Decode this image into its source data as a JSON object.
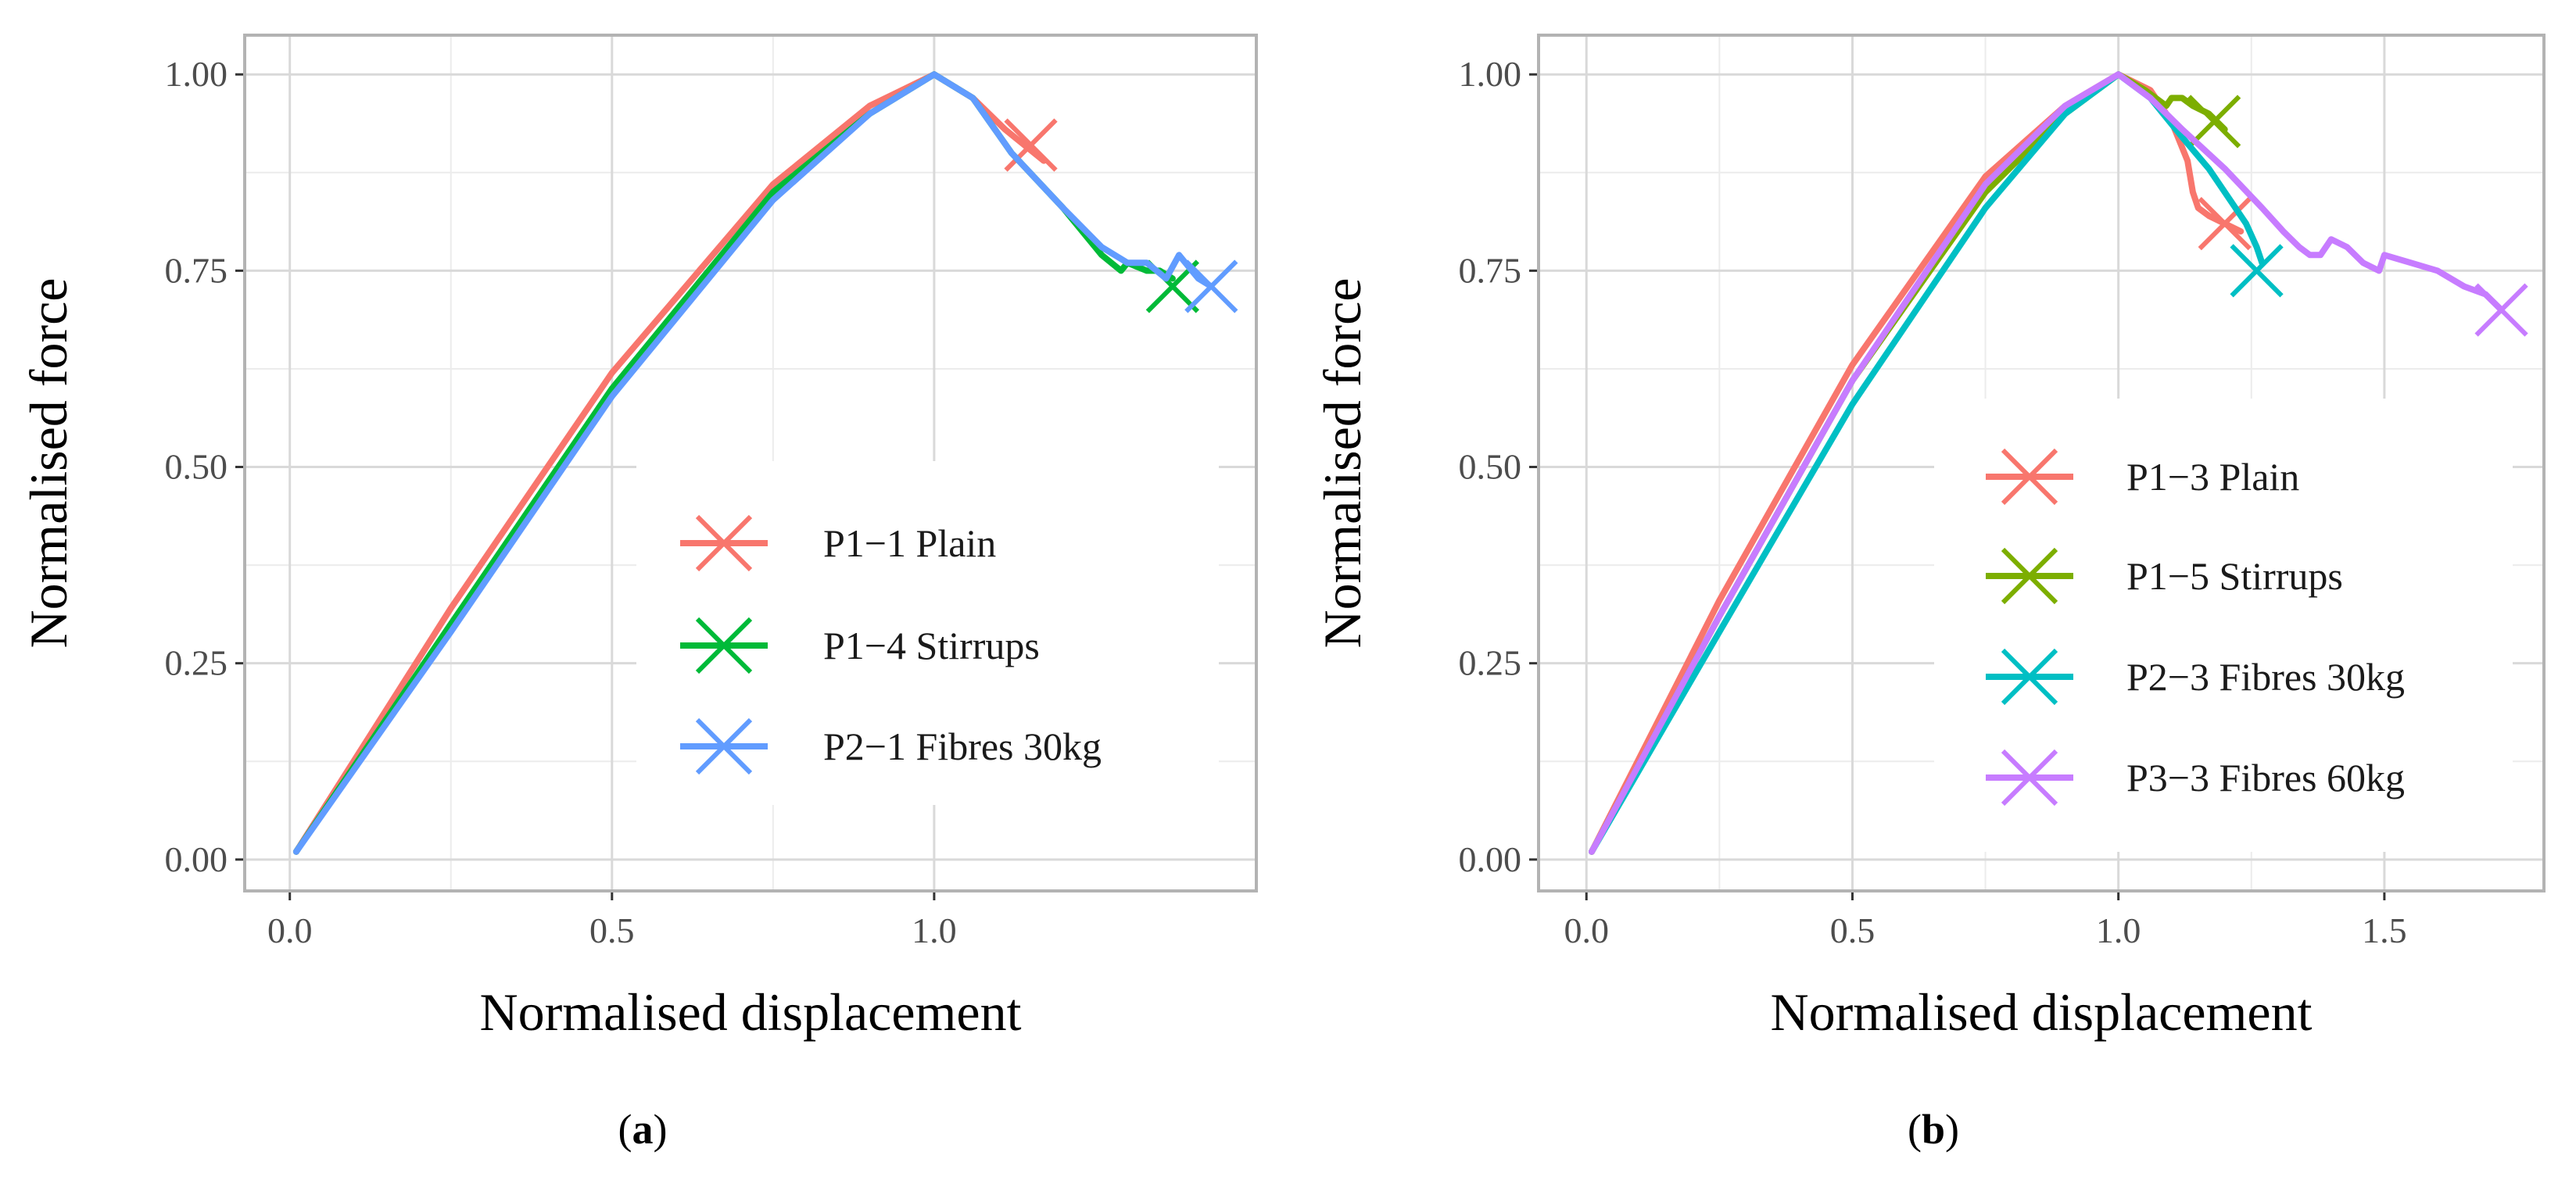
{
  "chart_data": [
    {
      "type": "line",
      "panel": "a",
      "caption": "(a)",
      "xlabel": "Normalised displacement",
      "ylabel": "Normalised force",
      "xlim": [
        -0.07,
        1.5
      ],
      "ylim": [
        -0.04,
        1.05
      ],
      "xticks": [
        0.0,
        0.5,
        1.0
      ],
      "xtick_labels": [
        "0.0",
        "0.5",
        "1.0"
      ],
      "yticks": [
        0.0,
        0.25,
        0.5,
        0.75,
        1.0
      ],
      "ytick_labels": [
        "0.00",
        "0.25",
        "0.50",
        "0.75",
        "1.00"
      ],
      "grid": true,
      "legend_position": "bottom-right",
      "series": [
        {
          "name": "P1−1 Plain",
          "color": "#F8766D",
          "x": [
            0.01,
            0.25,
            0.5,
            0.75,
            0.9,
            1.0,
            1.06,
            1.11,
            1.17
          ],
          "y": [
            0.01,
            0.32,
            0.62,
            0.86,
            0.96,
            1.0,
            0.97,
            0.93,
            0.89
          ],
          "end_marker": [
            1.15,
            0.91
          ]
        },
        {
          "name": "P1−4 Stirrups",
          "color": "#00BA38",
          "x": [
            0.01,
            0.25,
            0.5,
            0.75,
            0.9,
            1.0,
            1.06,
            1.12,
            1.2,
            1.26,
            1.29,
            1.3,
            1.33,
            1.35,
            1.37
          ],
          "y": [
            0.01,
            0.3,
            0.6,
            0.85,
            0.95,
            1.0,
            0.97,
            0.9,
            0.83,
            0.77,
            0.75,
            0.76,
            0.75,
            0.75,
            0.74
          ],
          "end_marker": [
            1.37,
            0.73
          ]
        },
        {
          "name": "P2−1 Fibres 30kg",
          "color": "#619CFF",
          "x": [
            0.01,
            0.25,
            0.5,
            0.75,
            0.9,
            1.0,
            1.06,
            1.12,
            1.2,
            1.26,
            1.3,
            1.33,
            1.36,
            1.38,
            1.41,
            1.43
          ],
          "y": [
            0.01,
            0.29,
            0.59,
            0.84,
            0.95,
            1.0,
            0.97,
            0.9,
            0.83,
            0.78,
            0.76,
            0.76,
            0.74,
            0.77,
            0.74,
            0.73
          ],
          "end_marker": [
            1.43,
            0.73
          ]
        }
      ]
    },
    {
      "type": "line",
      "panel": "b",
      "caption": "(b)",
      "xlabel": "Normalised displacement",
      "ylabel": "Normalised force",
      "xlim": [
        -0.09,
        1.8
      ],
      "ylim": [
        -0.04,
        1.05
      ],
      "xticks": [
        0.0,
        0.5,
        1.0,
        1.5
      ],
      "xtick_labels": [
        "0.0",
        "0.5",
        "1.0",
        "1.5"
      ],
      "yticks": [
        0.0,
        0.25,
        0.5,
        0.75,
        1.0
      ],
      "ytick_labels": [
        "0.00",
        "0.25",
        "0.50",
        "0.75",
        "1.00"
      ],
      "grid": true,
      "legend_position": "bottom-right",
      "series": [
        {
          "name": "P1−3 Plain",
          "color": "#F8766D",
          "x": [
            0.01,
            0.25,
            0.5,
            0.75,
            0.9,
            1.0,
            1.06,
            1.1,
            1.13,
            1.14,
            1.15,
            1.17,
            1.2,
            1.23
          ],
          "y": [
            0.01,
            0.33,
            0.63,
            0.87,
            0.96,
            1.0,
            0.98,
            0.94,
            0.89,
            0.85,
            0.83,
            0.82,
            0.81,
            0.8
          ],
          "end_marker": [
            1.2,
            0.81
          ]
        },
        {
          "name": "P1−5 Stirrups",
          "color": "#7CAE00",
          "x": [
            0.01,
            0.25,
            0.5,
            0.75,
            0.9,
            1.0,
            1.05,
            1.09,
            1.1,
            1.12,
            1.14,
            1.17,
            1.2
          ],
          "y": [
            0.01,
            0.31,
            0.61,
            0.85,
            0.95,
            1.0,
            0.98,
            0.96,
            0.97,
            0.97,
            0.96,
            0.95,
            0.93
          ],
          "end_marker": [
            1.18,
            0.94
          ]
        },
        {
          "name": "P2−3 Fibres 30kg",
          "color": "#00BFC4",
          "x": [
            0.01,
            0.25,
            0.5,
            0.75,
            0.9,
            1.0,
            1.06,
            1.12,
            1.17,
            1.21,
            1.24,
            1.26,
            1.27
          ],
          "y": [
            0.01,
            0.29,
            0.58,
            0.83,
            0.95,
            1.0,
            0.97,
            0.92,
            0.88,
            0.84,
            0.81,
            0.78,
            0.76
          ],
          "end_marker": [
            1.26,
            0.75
          ]
        },
        {
          "name": "P3−3 Fibres 60kg",
          "color": "#C77CFF",
          "x": [
            0.01,
            0.25,
            0.5,
            0.75,
            0.9,
            1.0,
            1.06,
            1.12,
            1.2,
            1.27,
            1.31,
            1.34,
            1.36,
            1.38,
            1.4,
            1.43,
            1.46,
            1.49,
            1.5,
            1.55,
            1.6,
            1.65,
            1.69,
            1.72
          ],
          "y": [
            0.01,
            0.31,
            0.61,
            0.86,
            0.96,
            1.0,
            0.97,
            0.93,
            0.88,
            0.83,
            0.8,
            0.78,
            0.77,
            0.77,
            0.79,
            0.78,
            0.76,
            0.75,
            0.77,
            0.76,
            0.75,
            0.73,
            0.72,
            0.7
          ],
          "end_marker": [
            1.72,
            0.7
          ]
        }
      ]
    }
  ]
}
